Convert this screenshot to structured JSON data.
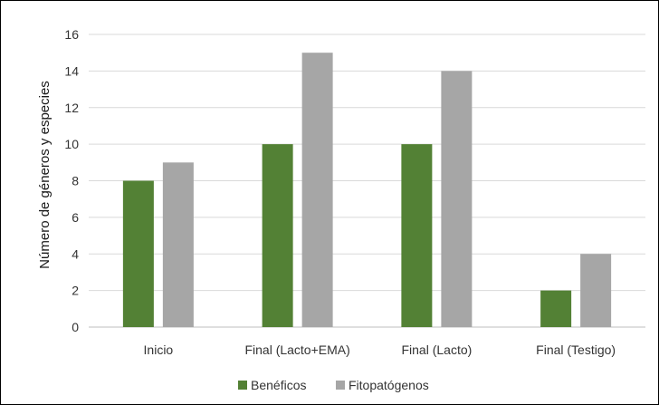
{
  "chart_data": {
    "type": "bar",
    "categories": [
      "Inicio",
      "Final (Lacto+EMA)",
      "Final (Lacto)",
      "Final (Testigo)"
    ],
    "series": [
      {
        "name": "Benéficos",
        "values": [
          8,
          10,
          10,
          2
        ],
        "color": "#538135"
      },
      {
        "name": "Fitopatógenos",
        "values": [
          9,
          15,
          14,
          4
        ],
        "color": "#a6a6a6"
      }
    ],
    "title": "",
    "xlabel": "",
    "ylabel": "Número de géneros y especies",
    "ylim": [
      0,
      16
    ],
    "yticks": [
      0,
      2,
      4,
      6,
      8,
      10,
      12,
      14,
      16
    ],
    "grid": true,
    "legend_position": "bottom"
  }
}
